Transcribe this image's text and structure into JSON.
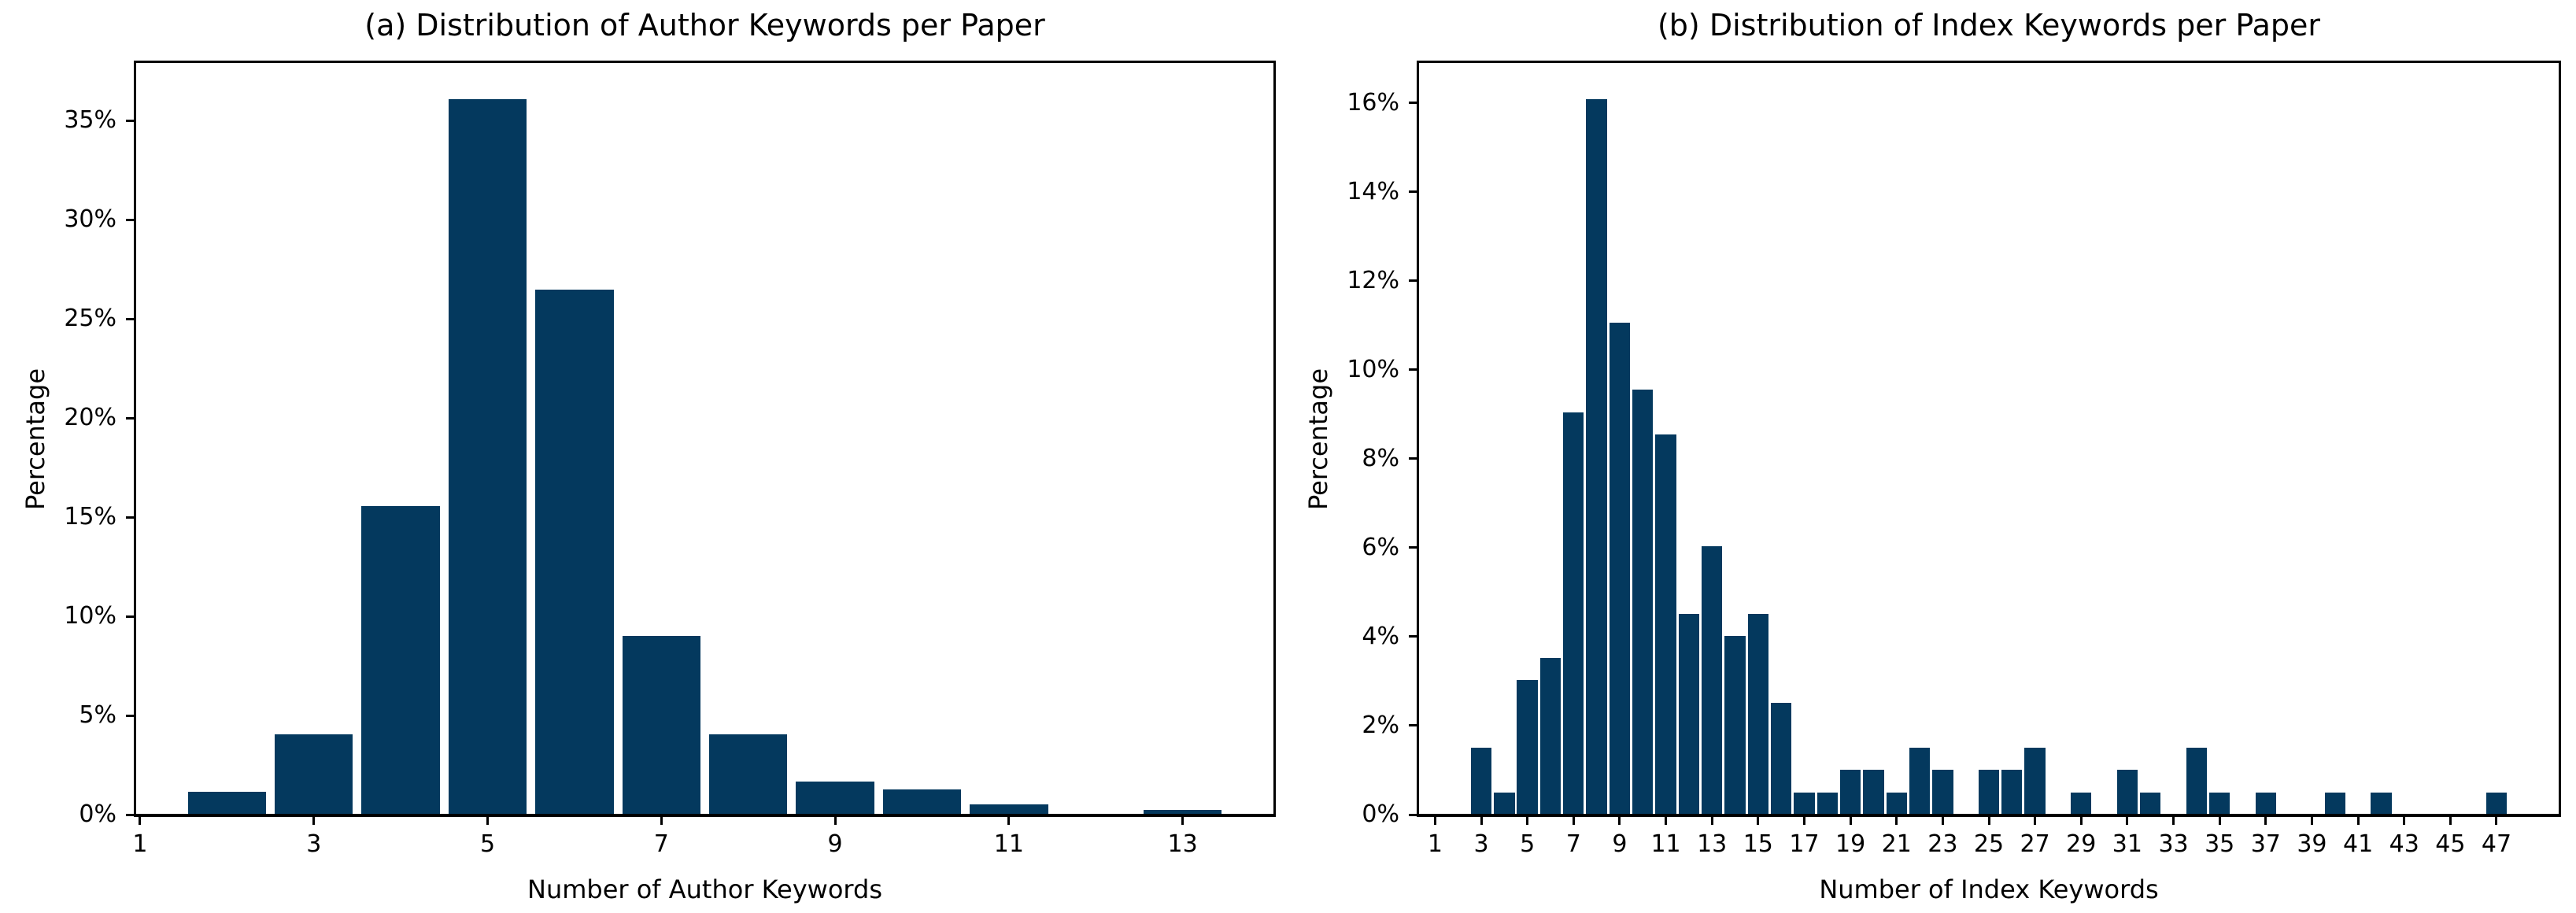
{
  "figure": {
    "background": "#ffffff",
    "bar_color": "#04395e",
    "axis_color": "#000000"
  },
  "chart_data": [
    {
      "type": "bar",
      "title": "(a) Distribution of Author Keywords per Paper",
      "xlabel": "Number of Author Keywords",
      "ylabel": "Percentage",
      "x": [
        2,
        3,
        4,
        5,
        6,
        7,
        8,
        9,
        10,
        11,
        12,
        13
      ],
      "values": [
        1.14,
        4.05,
        15.57,
        36.08,
        26.46,
        8.99,
        4.05,
        1.65,
        1.27,
        0.51,
        0,
        0.25
      ],
      "bar_width": 0.9,
      "xlim": [
        0.955,
        14.045
      ],
      "ylim": [
        0,
        37.9
      ],
      "xticks": [
        1,
        3,
        5,
        7,
        9,
        11,
        13
      ],
      "xtick_labels": [
        "1",
        "3",
        "5",
        "7",
        "9",
        "11",
        "13"
      ],
      "yticks": [
        0,
        5,
        10,
        15,
        20,
        25,
        30,
        35
      ],
      "ytick_labels": [
        "0%",
        "5%",
        "10%",
        "15%",
        "20%",
        "25%",
        "30%",
        "35%"
      ],
      "grid": false,
      "legend": null
    },
    {
      "type": "bar",
      "title": "(b) Distribution of Index Keywords per Paper",
      "xlabel": "Number of Index Keywords",
      "ylabel": "Percentage",
      "x": [
        3,
        4,
        5,
        6,
        7,
        8,
        9,
        10,
        11,
        12,
        13,
        14,
        15,
        16,
        17,
        18,
        19,
        20,
        21,
        22,
        23,
        25,
        26,
        27,
        29,
        31,
        32,
        34,
        35,
        37,
        40,
        42,
        47
      ],
      "values": [
        1.51,
        0.5,
        3.02,
        3.52,
        9.05,
        16.08,
        11.06,
        9.55,
        8.54,
        4.52,
        6.03,
        4.02,
        4.52,
        2.51,
        0.5,
        0.5,
        1.01,
        1.01,
        0.5,
        1.51,
        1.01,
        1.01,
        1.01,
        1.51,
        0.5,
        1.01,
        0.5,
        1.51,
        0.5,
        0.5,
        0.5,
        0.5,
        0.5
      ],
      "bar_width": 0.9,
      "xlim": [
        0.305,
        49.695
      ],
      "ylim": [
        0,
        16.9
      ],
      "xticks": [
        1,
        3,
        5,
        7,
        9,
        11,
        13,
        15,
        17,
        19,
        21,
        23,
        25,
        27,
        29,
        31,
        33,
        35,
        37,
        39,
        41,
        43,
        45,
        47
      ],
      "xtick_labels": [
        "1",
        "3",
        "5",
        "7",
        "9",
        "11",
        "13",
        "15",
        "17",
        "19",
        "21",
        "23",
        "25",
        "27",
        "29",
        "31",
        "33",
        "35",
        "37",
        "39",
        "41",
        "43",
        "45",
        "47"
      ],
      "yticks": [
        0,
        2,
        4,
        6,
        8,
        10,
        12,
        14,
        16
      ],
      "ytick_labels": [
        "0%",
        "2%",
        "4%",
        "6%",
        "8%",
        "10%",
        "12%",
        "14%",
        "16%"
      ],
      "grid": false,
      "legend": null
    }
  ]
}
